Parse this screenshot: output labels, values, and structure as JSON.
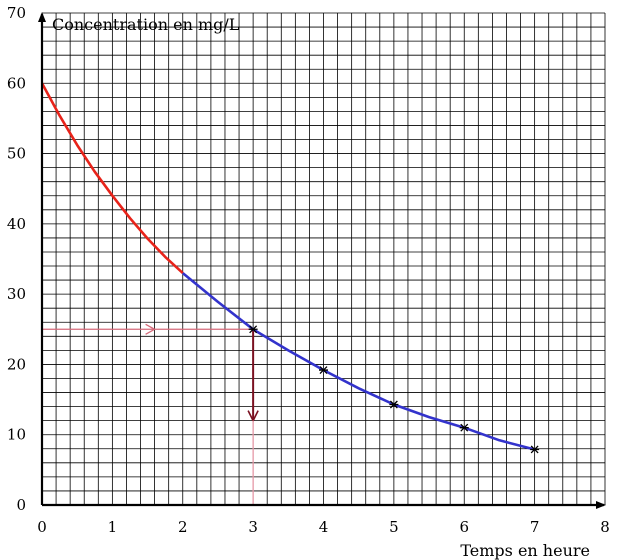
{
  "chart_data": {
    "type": "line",
    "xlabel": "Temps en heure",
    "ylabel": "Concentration en mg/L",
    "xlim": [
      0,
      8
    ],
    "ylim": [
      0,
      70
    ],
    "x_ticks": [
      "0",
      "1",
      "2",
      "3",
      "4",
      "5",
      "6",
      "7",
      "8"
    ],
    "y_ticks": [
      "0",
      "10",
      "20",
      "30",
      "40",
      "50",
      "60",
      "70"
    ],
    "grid": true,
    "grid_step_x": 0.2,
    "grid_step_y": 2,
    "series": [
      {
        "color": "#e8231a",
        "x": [
          0,
          0.25,
          0.5,
          0.75,
          1,
          1.25,
          1.5,
          1.75,
          2
        ],
        "values": [
          60,
          55.4,
          51.2,
          47.4,
          44,
          40.8,
          37.9,
          35.3,
          33
        ]
      },
      {
        "color": "#3333cc",
        "x": [
          2,
          2.5,
          3,
          3.5,
          4,
          4.5,
          5,
          5.5,
          6,
          6.5,
          7
        ],
        "values": [
          33,
          28.9,
          25,
          22,
          19.2,
          16.6,
          14.3,
          12.5,
          11,
          9.2,
          7.9
        ]
      }
    ],
    "markers": [
      {
        "x": 3,
        "y": 25
      },
      {
        "x": 4,
        "y": 19.2
      },
      {
        "x": 5,
        "y": 14.3
      },
      {
        "x": 6,
        "y": 11
      },
      {
        "x": 7,
        "y": 7.9
      }
    ],
    "reading_lines": [
      {
        "color": "#d46a7a",
        "from": [
          0,
          25
        ],
        "to": [
          3,
          25
        ],
        "arrow_at_x": 1.6
      },
      {
        "color": "#7a1020",
        "from": [
          3,
          25
        ],
        "to": [
          3,
          12
        ],
        "arrow": true
      },
      {
        "color": "#e89aa8",
        "from": [
          3,
          12
        ],
        "to": [
          3,
          0
        ]
      }
    ]
  }
}
